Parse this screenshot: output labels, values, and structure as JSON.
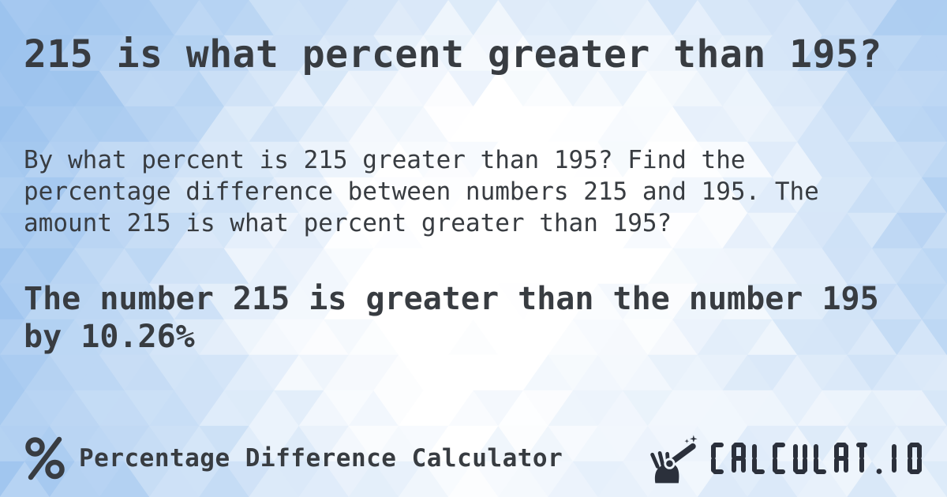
{
  "title": "215 is what percent greater than 195?",
  "description_lines": [
    "By what percent is 215 greater than 195? Find the",
    "percentage difference between numbers 215 and 195. The",
    "amount 215 is what percent greater than 195?"
  ],
  "answer_lines": [
    "The number 215 is greater than the number 195",
    "by 10.26%"
  ],
  "footer": {
    "calculator_name": "Percentage Difference Calculator",
    "site_name": "CALCULAT.IO"
  },
  "icons": {
    "footer_left": "percent-icon",
    "site_logo": "magic-wand-hand-icon"
  },
  "theme": {
    "text_color": "#383c41",
    "logo_color": "#2b303b",
    "bg_blue": "#9cc3ee",
    "bg_white": "#ffffff"
  }
}
